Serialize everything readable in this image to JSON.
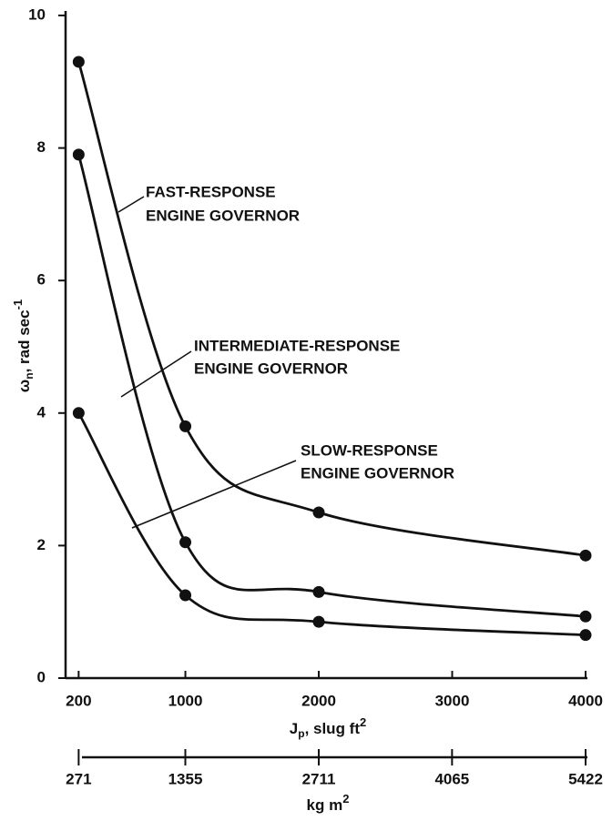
{
  "chart_data": {
    "type": "line",
    "x_label": {
      "symbol": "J",
      "subscript": "p",
      "text": ", slug ft",
      "superscript": "2"
    },
    "x2_label": {
      "text": "kg m",
      "superscript": "2"
    },
    "y_label": {
      "symbol": "ω",
      "subscript": "n",
      "text": ", rad sec",
      "superscript": "-1"
    },
    "xlim": [
      102,
      4000
    ],
    "xticks": [
      200,
      1000,
      2000,
      3000,
      4000
    ],
    "x2lim": [
      138,
      5422
    ],
    "x2ticks": [
      271,
      1355,
      2711,
      4065,
      5422
    ],
    "ylim": [
      0,
      10
    ],
    "yticks": [
      0,
      2,
      4,
      6,
      8,
      10
    ],
    "color": "#111111",
    "series": [
      {
        "name": "FAST-RESPONSE ENGINE GOVERNOR",
        "x": [
          200,
          1000,
          2000,
          4000
        ],
        "values": [
          9.3,
          3.8,
          2.5,
          1.85
        ]
      },
      {
        "name": "INTERMEDIATE-RESPONSE ENGINE GOVERNOR",
        "x": [
          200,
          1000,
          2000,
          4000
        ],
        "values": [
          7.9,
          2.05,
          1.3,
          0.93
        ]
      },
      {
        "name": "SLOW-RESPONSE ENGINE GOVERNOR",
        "x": [
          200,
          1000,
          2000,
          4000
        ],
        "values": [
          4.0,
          1.25,
          0.85,
          0.65
        ]
      }
    ],
    "annotations": [
      {
        "lines": [
          "FAST-RESPONSE",
          "ENGINE GOVERNOR"
        ]
      },
      {
        "lines": [
          "INTERMEDIATE-RESPONSE",
          "ENGINE GOVERNOR"
        ]
      },
      {
        "lines": [
          "SLOW-RESPONSE",
          "ENGINE GOVERNOR"
        ]
      }
    ]
  }
}
